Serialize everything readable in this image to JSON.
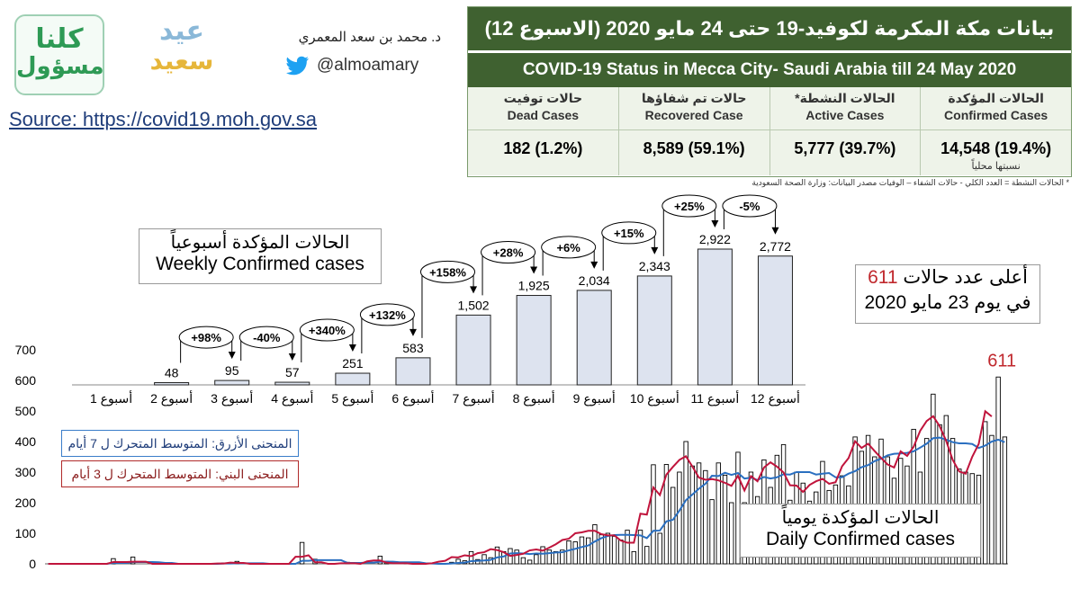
{
  "logos": {
    "kolna_line1": "كلنا",
    "kolna_line2": "مسؤول",
    "eid_line1": "عيد",
    "eid_line2": "سعيد"
  },
  "author": {
    "name": "د. محمد بن سعد المعمري",
    "handle": "@almoamary",
    "icon": "twitter-icon"
  },
  "source": "Source: https://covid19.moh.gov.sa",
  "table": {
    "title_ar": "بيانات مكة المكرمة لكوفيد-19 حتى 24 مايو 2020 (الاسبوع 12)",
    "title_en": "COVID-19 Status in Mecca City- Saudi Arabia till 24 May 2020",
    "columns": [
      {
        "ar": "الحالات المؤكدة",
        "en": "Confirmed Cases",
        "value": "14,548 (19.4%)",
        "note": "نسبتها محلياً"
      },
      {
        "ar": "الحالات النشطة*",
        "en": "Active Cases",
        "value": "5,777 (39.7%)",
        "note": ""
      },
      {
        "ar": "حالات تم شفاؤها",
        "en": "Recovered Case",
        "value": "8,589 (59.1%)",
        "note": ""
      },
      {
        "ar": "حالات توفيت",
        "en": "Dead Cases",
        "value": "182 (1.2%)",
        "note": ""
      }
    ],
    "footnote": "* الحالات النشطة = العدد الكلي - حالات الشفاء – الوفيات      مصدر البيانات: وزارة الصحة السعودية"
  },
  "weekly_box": {
    "ar": "الحالات المؤكدة أسبوعياً",
    "en": "Weekly Confirmed cases"
  },
  "peak_box": {
    "line1_pre": "أعلى عدد حالات",
    "line1_num": "611",
    "line2": "في يوم 23 مايو 2020"
  },
  "daily_box": {
    "ar": "الحالات المؤكدة يومياً",
    "en": "Daily Confirmed cases"
  },
  "legend": {
    "blue": "المنحنى الأزرق: المتوسط المتحرك ل 7 أيام",
    "red": "المنحنى البني: المتوسط المتحرك ل 3 أيام"
  },
  "colors": {
    "header_green": "#3f6130",
    "bar_fill": "#dde3ef",
    "ma7": "#2a6fc0",
    "ma3": "#c0143c",
    "peak_red": "#c0282d"
  },
  "chart_data": [
    {
      "type": "bar",
      "title": "Weekly Confirmed cases",
      "categories": [
        "أسبوع 1",
        "أسبوع 2",
        "أسبوع 3",
        "أسبوع 4",
        "أسبوع 5",
        "أسبوع 6",
        "أسبوع 7",
        "أسبوع 8",
        "أسبوع 9",
        "أسبوع 10",
        "أسبوع 11",
        "أسبوع 12"
      ],
      "values": [
        null,
        48,
        95,
        57,
        251,
        583,
        1502,
        1925,
        2034,
        2343,
        2922,
        2772
      ],
      "value_labels": [
        "",
        "48",
        "95",
        "57",
        "251",
        "583",
        "1,502",
        "1,925",
        "2,034",
        "2,343",
        "2,922",
        "2,772"
      ],
      "changes": [
        {
          "from": 1,
          "to": 2,
          "label": "+98%"
        },
        {
          "from": 2,
          "to": 3,
          "label": "-40%"
        },
        {
          "from": 3,
          "to": 4,
          "label": "+340%"
        },
        {
          "from": 4,
          "to": 5,
          "label": "+132%"
        },
        {
          "from": 5,
          "to": 6,
          "label": "+158%"
        },
        {
          "from": 6,
          "to": 7,
          "label": "+28%"
        },
        {
          "from": 7,
          "to": 8,
          "label": "+6%"
        },
        {
          "from": 8,
          "to": 9,
          "label": "+15%"
        },
        {
          "from": 9,
          "to": 10,
          "label": "+25%"
        },
        {
          "from": 10,
          "to": 11,
          "label": "-5%"
        }
      ]
    },
    {
      "type": "bar",
      "title": "Daily Confirmed cases",
      "ylim": [
        0,
        700
      ],
      "yticks": [
        0,
        100,
        200,
        300,
        400,
        500,
        600,
        700
      ],
      "values": [
        0,
        0,
        0,
        0,
        0,
        0,
        0,
        0,
        0,
        0,
        17,
        0,
        0,
        22,
        0,
        0,
        0,
        0,
        0,
        0,
        0,
        0,
        0,
        0,
        0,
        0,
        0,
        3,
        0,
        8,
        0,
        0,
        0,
        0,
        0,
        0,
        0,
        0,
        0,
        70,
        0,
        15,
        0,
        0,
        0,
        0,
        5,
        0,
        0,
        0,
        0,
        25,
        8,
        0,
        0,
        5,
        0,
        0,
        0,
        0,
        0,
        0,
        5,
        15,
        10,
        40,
        14,
        30,
        20,
        55,
        40,
        50,
        45,
        20,
        12,
        30,
        56,
        45,
        40,
        45,
        75,
        72,
        88,
        85,
        128,
        95,
        100,
        90,
        78,
        110,
        40,
        110,
        57,
        324,
        100,
        325,
        250,
        300,
        400,
        320,
        330,
        305,
        210,
        330,
        290,
        200,
        365,
        200,
        300,
        220,
        340,
        250,
        355,
        390,
        208,
        300,
        264,
        205,
        235,
        335,
        240,
        258,
        288,
        255,
        415,
        368,
        420,
        350,
        408,
        350,
        280,
        345,
        320,
        440,
        300,
        410,
        555,
        455,
        485,
        410,
        310,
        300,
        295,
        290,
        465,
        420,
        611,
        415
      ],
      "series": [
        {
          "name": "المتوسط المتحرك ل 7 أيام",
          "color": "#2a6fc0",
          "values": [
            0,
            0,
            0,
            0,
            0,
            0,
            0,
            0,
            0,
            0,
            3,
            3,
            3,
            6,
            6,
            6,
            6,
            5,
            3,
            3,
            0,
            0,
            0,
            0,
            0,
            0,
            0,
            1,
            1,
            2,
            2,
            2,
            2,
            2,
            0,
            0,
            0,
            0,
            0,
            10,
            10,
            12,
            12,
            12,
            12,
            12,
            3,
            3,
            3,
            4,
            4,
            7,
            7,
            7,
            5,
            5,
            5,
            5,
            2,
            1,
            0,
            0,
            1,
            3,
            4,
            9,
            10,
            11,
            13,
            21,
            24,
            34,
            35,
            34,
            32,
            34,
            33,
            35,
            37,
            38,
            44,
            49,
            55,
            60,
            73,
            84,
            91,
            94,
            95,
            95,
            94,
            93,
            84,
            108,
            109,
            139,
            144,
            174,
            208,
            227,
            246,
            262,
            288,
            287,
            298,
            291,
            297,
            279,
            282,
            274,
            284,
            279,
            283,
            293,
            292,
            300,
            300,
            300,
            292,
            295,
            297,
            283,
            283,
            295,
            303,
            316,
            323,
            336,
            344,
            355,
            360,
            361,
            363,
            368,
            380,
            393,
            411,
            413,
            406,
            398,
            394,
            394,
            392,
            379,
            387,
            400,
            406,
            398
          ]
        },
        {
          "name": "المتوسط المتحرك ل 3 أيام",
          "color": "#c0143c",
          "values": [
            0,
            0,
            0,
            0,
            0,
            0,
            0,
            0,
            0,
            0,
            6,
            6,
            6,
            7,
            7,
            7,
            0,
            0,
            0,
            0,
            0,
            0,
            0,
            0,
            0,
            0,
            1,
            1,
            4,
            3,
            3,
            0,
            0,
            0,
            0,
            0,
            0,
            0,
            23,
            23,
            28,
            5,
            5,
            0,
            0,
            2,
            2,
            2,
            0,
            8,
            11,
            11,
            4,
            2,
            2,
            2,
            0,
            0,
            0,
            2,
            7,
            10,
            22,
            21,
            28,
            25,
            35,
            38,
            48,
            45,
            38,
            26,
            29,
            33,
            44,
            47,
            43,
            53,
            64,
            78,
            82,
            100,
            103,
            108,
            108,
            97,
            93,
            93,
            76,
            69,
            69,
            164,
            161,
            250,
            225,
            292,
            317,
            340,
            352,
            318,
            282,
            275,
            277,
            273,
            265,
            255,
            288,
            240,
            287,
            270,
            315,
            332,
            318,
            299,
            257,
            256,
            235,
            258,
            270,
            278,
            262,
            267,
            319,
            346,
            401,
            379,
            393,
            369,
            346,
            325,
            315,
            368,
            353,
            383,
            435,
            467,
            483,
            450,
            402,
            340,
            302,
            295,
            350,
            392,
            499,
            482
          ]
        }
      ],
      "peak_annotation": "611"
    }
  ]
}
